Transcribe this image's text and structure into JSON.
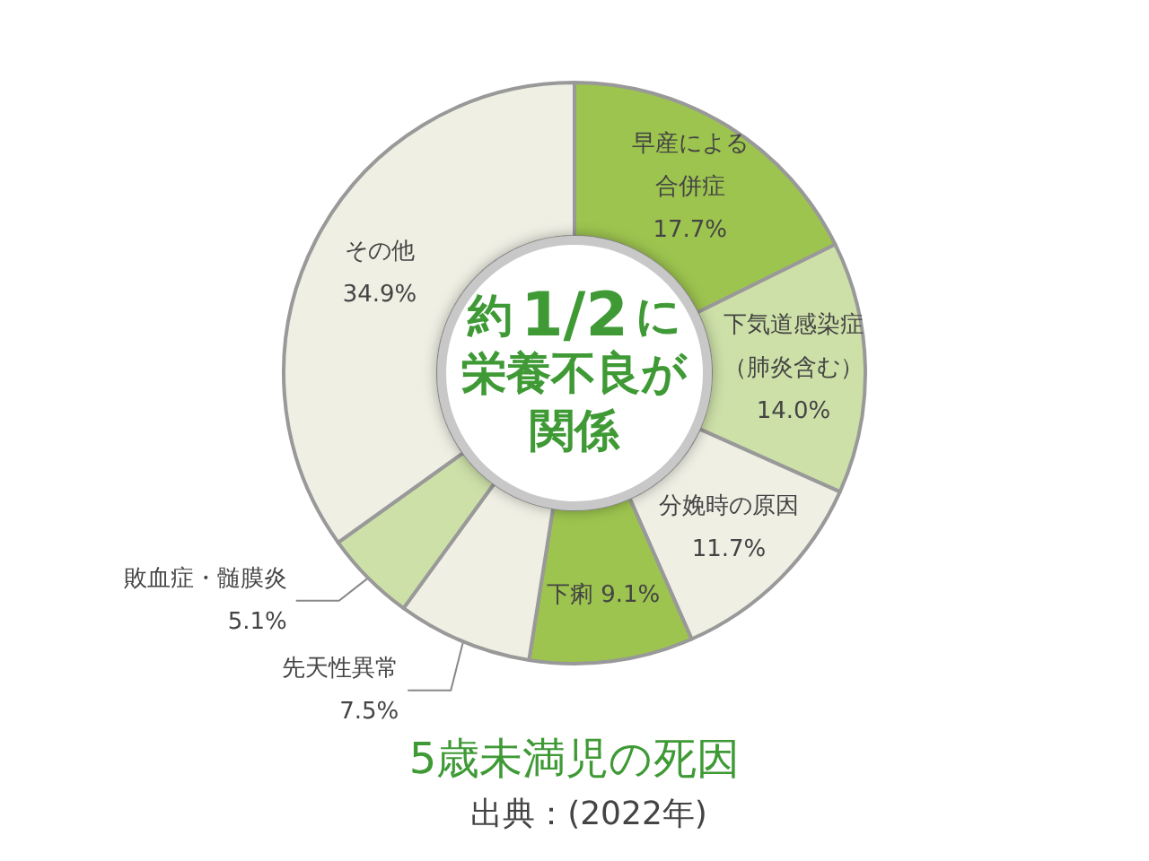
{
  "chart_data": {
    "type": "donut",
    "title": "5歳未満児の死因",
    "categories": [
      "早産による合併症",
      "下気道感染症（肺炎含む）",
      "分娩時の原因",
      "下痢",
      "先天性異常",
      "敗血症・髄膜炎",
      "その他"
    ],
    "values": [
      17.7,
      14.0,
      11.7,
      9.1,
      7.5,
      5.1,
      34.9
    ],
    "value_labels": [
      "17.7%",
      "14.0%",
      "11.7%",
      "9.1%",
      "7.5%",
      "5.1%",
      "34.9%"
    ],
    "colors": [
      "#9dc44f",
      "#cde0a8",
      "#efefe4",
      "#9dc44f",
      "#efefe4",
      "#cde0a8",
      "#efefe4"
    ],
    "legend": false,
    "annotations": [
      "約1/2に栄養不良が関係",
      "出典：(2022年)"
    ]
  }
}
